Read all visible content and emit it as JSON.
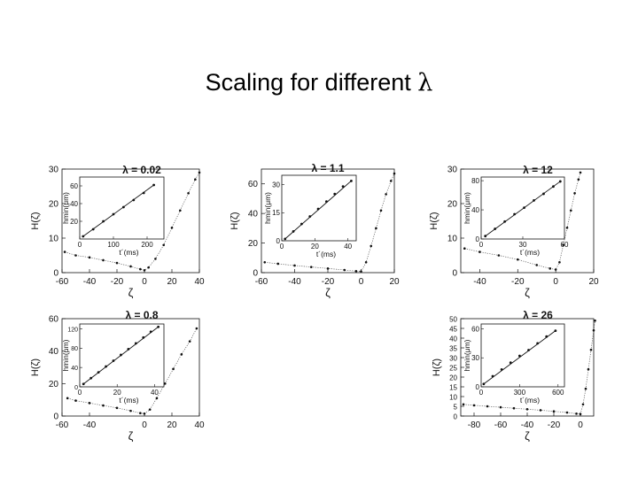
{
  "slide": {
    "title_text": "Scaling for different ",
    "title_symbol": "λ"
  },
  "chart_data": [
    {
      "type": "scatter",
      "title": "λ = 0.02",
      "xlabel": "ζ",
      "ylabel": "H(ζ)",
      "xlim": [
        -60,
        40
      ],
      "ylim": [
        0,
        30
      ],
      "xticks": [
        "-60",
        "-40",
        "-20",
        "0",
        "20",
        "40"
      ],
      "yticks": [
        "0",
        "10",
        "20",
        "30"
      ],
      "series": [
        {
          "points": [
            [
              -58,
              6
            ],
            [
              -50,
              5
            ],
            [
              -40,
              4.4
            ],
            [
              -30,
              3.6
            ],
            [
              -20,
              2.8
            ],
            [
              -10,
              1.8
            ],
            [
              -3,
              1
            ],
            [
              0,
              0.7
            ],
            [
              3,
              1.5
            ],
            [
              8,
              4
            ],
            [
              14,
              8
            ],
            [
              20,
              13
            ],
            [
              26,
              18
            ],
            [
              32,
              23
            ],
            [
              37,
              27
            ],
            [
              40,
              29
            ]
          ]
        }
      ],
      "inset": {
        "xlabel": "t´(ms)",
        "ylabel": "hmin(μm)",
        "xlim": [
          0,
          250
        ],
        "ylim": [
          0,
          70
        ],
        "xticks": [
          "0",
          "100",
          "200"
        ],
        "yticks": [
          "20",
          "40",
          "60"
        ],
        "points": [
          [
            10,
            3
          ],
          [
            40,
            11
          ],
          [
            70,
            20
          ],
          [
            100,
            28
          ],
          [
            130,
            36
          ],
          [
            160,
            44
          ],
          [
            190,
            52
          ],
          [
            220,
            61
          ]
        ]
      }
    },
    {
      "type": "scatter",
      "title": "λ = 1.1",
      "xlabel": "ζ",
      "ylabel": "H(ζ)",
      "xlim": [
        -60,
        20
      ],
      "ylim": [
        0,
        70
      ],
      "xticks": [
        "-60",
        "-40",
        "-20",
        "0",
        "20"
      ],
      "yticks": [
        "0",
        "20",
        "40",
        "60"
      ],
      "series": [
        {
          "points": [
            [
              -58,
              7
            ],
            [
              -50,
              6
            ],
            [
              -40,
              4.8
            ],
            [
              -30,
              3.8
            ],
            [
              -20,
              2.8
            ],
            [
              -10,
              1.8
            ],
            [
              -3,
              1
            ],
            [
              0,
              0.8
            ],
            [
              3,
              7
            ],
            [
              6,
              18
            ],
            [
              9,
              30
            ],
            [
              12,
              42
            ],
            [
              15,
              53
            ],
            [
              18,
              62
            ],
            [
              20,
              67
            ]
          ]
        }
      ],
      "inset": {
        "xlabel": "t´(ms)",
        "ylabel": "hmin(μm)",
        "xlim": [
          0,
          45
        ],
        "ylim": [
          0,
          35
        ],
        "xticks": [
          "0",
          "20",
          "40"
        ],
        "yticks": [
          "0",
          "15",
          "30"
        ],
        "points": [
          [
            2,
            1
          ],
          [
            7,
            5
          ],
          [
            12,
            9
          ],
          [
            17,
            13
          ],
          [
            22,
            17
          ],
          [
            27,
            21
          ],
          [
            32,
            25
          ],
          [
            37,
            29
          ],
          [
            42,
            32
          ]
        ]
      }
    },
    {
      "type": "scatter",
      "title": "λ = 12",
      "xlabel": "ζ",
      "ylabel": "H(ζ)",
      "xlim": [
        -50,
        20
      ],
      "ylim": [
        0,
        30
      ],
      "xticks": [
        "-40",
        "-20",
        "0",
        "20"
      ],
      "yticks": [
        "0",
        "10",
        "20",
        "30"
      ],
      "series": [
        {
          "points": [
            [
              -48,
              7
            ],
            [
              -40,
              6
            ],
            [
              -30,
              5
            ],
            [
              -20,
              3.8
            ],
            [
              -10,
              2.2
            ],
            [
              -3,
              1.2
            ],
            [
              0,
              0.9
            ],
            [
              2,
              3
            ],
            [
              4,
              8
            ],
            [
              6,
              13
            ],
            [
              8,
              18
            ],
            [
              10,
              23
            ],
            [
              12,
              27
            ],
            [
              13,
              29
            ]
          ]
        }
      ],
      "inset": {
        "xlabel": "t´(ms)",
        "ylabel": "hmin(μm)",
        "xlim": [
          0,
          60
        ],
        "ylim": [
          0,
          85
        ],
        "xticks": [
          "0",
          "30",
          "60"
        ],
        "yticks": [
          "0",
          "40",
          "80"
        ],
        "points": [
          [
            3,
            4
          ],
          [
            10,
            14
          ],
          [
            17,
            24
          ],
          [
            24,
            34
          ],
          [
            31,
            43
          ],
          [
            38,
            53
          ],
          [
            45,
            62
          ],
          [
            52,
            72
          ],
          [
            57,
            79
          ]
        ]
      }
    },
    {
      "type": "scatter",
      "title": "λ = 0.8",
      "xlabel": "ζ",
      "ylabel": "H(ζ)",
      "xlim": [
        -60,
        40
      ],
      "ylim": [
        0,
        60
      ],
      "xticks": [
        "-60",
        "-40",
        "0",
        "20",
        "40"
      ],
      "yticks": [
        "0",
        "20",
        "40",
        "60"
      ],
      "series": [
        {
          "points": [
            [
              -56,
              11
            ],
            [
              -50,
              9.5
            ],
            [
              -40,
              8
            ],
            [
              -30,
              6.5
            ],
            [
              -20,
              5
            ],
            [
              -10,
              3.2
            ],
            [
              -3,
              1.8
            ],
            [
              0,
              1.5
            ],
            [
              4,
              4
            ],
            [
              9,
              11
            ],
            [
              15,
              20
            ],
            [
              21,
              29
            ],
            [
              27,
              38
            ],
            [
              33,
              46
            ],
            [
              38,
              54
            ]
          ]
        }
      ],
      "inset": {
        "xlabel": "t´(ms)",
        "ylabel": "hmin(μm)",
        "xlim": [
          0,
          45
        ],
        "ylim": [
          0,
          130
        ],
        "xticks": [
          "0",
          "20",
          "40"
        ],
        "yticks": [
          "0",
          "40",
          "80",
          "120"
        ],
        "points": [
          [
            2,
            6
          ],
          [
            6,
            18
          ],
          [
            10,
            30
          ],
          [
            14,
            42
          ],
          [
            18,
            54
          ],
          [
            22,
            66
          ],
          [
            26,
            78
          ],
          [
            30,
            90
          ],
          [
            34,
            102
          ],
          [
            38,
            114
          ],
          [
            42,
            124
          ]
        ]
      }
    },
    {
      "type": "scatter",
      "title": "λ = 26",
      "xlabel": "ζ",
      "ylabel": "H(ζ)",
      "xlim": [
        -90,
        10
      ],
      "ylim": [
        0,
        50
      ],
      "xticks": [
        "-80",
        "-60",
        "-40",
        "-20",
        "0"
      ],
      "yticks": [
        "0",
        "5",
        "10",
        "15",
        "20",
        "25",
        "30",
        "35",
        "40",
        "45",
        "50"
      ],
      "series": [
        {
          "points": [
            [
              -88,
              6
            ],
            [
              -80,
              5.5
            ],
            [
              -70,
              5
            ],
            [
              -60,
              4.5
            ],
            [
              -50,
              4
            ],
            [
              -40,
              3.5
            ],
            [
              -30,
              3
            ],
            [
              -20,
              2.4
            ],
            [
              -10,
              1.8
            ],
            [
              -3,
              1.2
            ],
            [
              0,
              1
            ],
            [
              2,
              6
            ],
            [
              4,
              14
            ],
            [
              6,
              24
            ],
            [
              8,
              34
            ],
            [
              10,
              44
            ],
            [
              11,
              49
            ]
          ]
        }
      ],
      "inset": {
        "xlabel": "t´(ms)",
        "ylabel": "hmin(μm)",
        "xlim": [
          0,
          650
        ],
        "ylim": [
          0,
          65
        ],
        "xticks": [
          "0",
          "300",
          "600"
        ],
        "yticks": [
          "0",
          "30",
          "60"
        ],
        "points": [
          [
            20,
            3
          ],
          [
            90,
            11
          ],
          [
            160,
            18
          ],
          [
            230,
            25
          ],
          [
            300,
            32
          ],
          [
            370,
            38
          ],
          [
            440,
            45
          ],
          [
            510,
            52
          ],
          [
            580,
            58
          ]
        ]
      }
    }
  ]
}
